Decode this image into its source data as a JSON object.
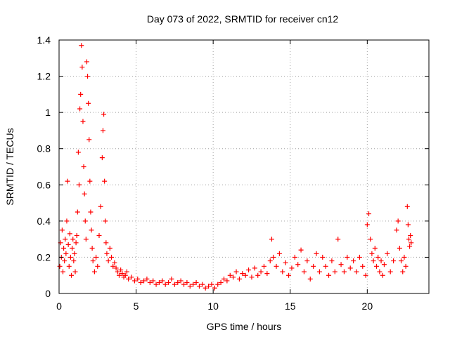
{
  "chart_data": {
    "type": "scatter",
    "title": "Day 073 of 2022, SRMTID for receiver cn12",
    "xlabel": "GPS time / hours",
    "ylabel": "SRMTID / TECUs",
    "xlim": [
      0,
      24
    ],
    "ylim": [
      0,
      1.4
    ],
    "xticks": [
      0,
      5,
      10,
      15,
      20
    ],
    "yticks": [
      0,
      0.2,
      0.4,
      0.6,
      0.8,
      1,
      1.2,
      1.4
    ],
    "grid": true,
    "marker": "plus",
    "color": "#ff0000",
    "series": [
      {
        "name": "SRMTID",
        "points": [
          [
            0.05,
            0.15
          ],
          [
            0.1,
            0.28
          ],
          [
            0.15,
            0.2
          ],
          [
            0.2,
            0.35
          ],
          [
            0.25,
            0.12
          ],
          [
            0.3,
            0.25
          ],
          [
            0.35,
            0.18
          ],
          [
            0.4,
            0.3
          ],
          [
            0.45,
            0.22
          ],
          [
            0.5,
            0.4
          ],
          [
            0.55,
            0.62
          ],
          [
            0.6,
            0.27
          ],
          [
            0.65,
            0.15
          ],
          [
            0.7,
            0.33
          ],
          [
            0.75,
            0.2
          ],
          [
            0.8,
            0.1
          ],
          [
            0.85,
            0.25
          ],
          [
            0.9,
            0.3
          ],
          [
            0.95,
            0.18
          ],
          [
            1.0,
            0.22
          ],
          [
            1.05,
            0.12
          ],
          [
            1.1,
            0.28
          ],
          [
            1.15,
            0.32
          ],
          [
            1.2,
            0.45
          ],
          [
            1.25,
            0.78
          ],
          [
            1.3,
            0.6
          ],
          [
            1.35,
            1.02
          ],
          [
            1.4,
            1.1
          ],
          [
            1.45,
            1.37
          ],
          [
            1.5,
            1.25
          ],
          [
            1.55,
            0.95
          ],
          [
            1.6,
            0.7
          ],
          [
            1.65,
            0.55
          ],
          [
            1.7,
            0.4
          ],
          [
            1.75,
            0.3
          ],
          [
            1.8,
            1.28
          ],
          [
            1.85,
            1.2
          ],
          [
            1.9,
            1.05
          ],
          [
            1.95,
            0.85
          ],
          [
            2.0,
            0.62
          ],
          [
            2.05,
            0.45
          ],
          [
            2.1,
            0.35
          ],
          [
            2.15,
            0.25
          ],
          [
            2.2,
            0.18
          ],
          [
            2.3,
            0.12
          ],
          [
            2.4,
            0.2
          ],
          [
            2.5,
            0.15
          ],
          [
            2.6,
            0.32
          ],
          [
            2.7,
            0.48
          ],
          [
            2.8,
            0.75
          ],
          [
            2.85,
            0.9
          ],
          [
            2.9,
            0.99
          ],
          [
            2.95,
            0.62
          ],
          [
            3.0,
            0.4
          ],
          [
            3.05,
            0.28
          ],
          [
            3.1,
            0.22
          ],
          [
            3.2,
            0.18
          ],
          [
            3.3,
            0.25
          ],
          [
            3.4,
            0.2
          ],
          [
            3.5,
            0.15
          ],
          [
            3.6,
            0.17
          ],
          [
            3.7,
            0.14
          ],
          [
            3.8,
            0.12
          ],
          [
            3.9,
            0.1
          ],
          [
            4.0,
            0.13
          ],
          [
            4.1,
            0.11
          ],
          [
            4.2,
            0.09
          ],
          [
            4.3,
            0.1
          ],
          [
            4.4,
            0.12
          ],
          [
            4.5,
            0.08
          ],
          [
            4.7,
            0.09
          ],
          [
            4.9,
            0.07
          ],
          [
            5.1,
            0.08
          ],
          [
            5.3,
            0.06
          ],
          [
            5.5,
            0.07
          ],
          [
            5.7,
            0.08
          ],
          [
            5.9,
            0.06
          ],
          [
            6.1,
            0.07
          ],
          [
            6.3,
            0.05
          ],
          [
            6.5,
            0.06
          ],
          [
            6.7,
            0.07
          ],
          [
            6.9,
            0.05
          ],
          [
            7.1,
            0.06
          ],
          [
            7.3,
            0.08
          ],
          [
            7.5,
            0.05
          ],
          [
            7.7,
            0.06
          ],
          [
            7.9,
            0.07
          ],
          [
            8.1,
            0.05
          ],
          [
            8.3,
            0.06
          ],
          [
            8.5,
            0.04
          ],
          [
            8.7,
            0.05
          ],
          [
            8.9,
            0.06
          ],
          [
            9.1,
            0.04
          ],
          [
            9.3,
            0.05
          ],
          [
            9.5,
            0.03
          ],
          [
            9.7,
            0.04
          ],
          [
            9.9,
            0.05
          ],
          [
            10.1,
            0.03
          ],
          [
            10.3,
            0.05
          ],
          [
            10.5,
            0.06
          ],
          [
            10.7,
            0.08
          ],
          [
            10.9,
            0.07
          ],
          [
            11.1,
            0.1
          ],
          [
            11.3,
            0.09
          ],
          [
            11.5,
            0.12
          ],
          [
            11.7,
            0.08
          ],
          [
            11.9,
            0.11
          ],
          [
            12.1,
            0.1
          ],
          [
            12.3,
            0.13
          ],
          [
            12.5,
            0.09
          ],
          [
            12.7,
            0.14
          ],
          [
            12.9,
            0.1
          ],
          [
            13.1,
            0.12
          ],
          [
            13.3,
            0.15
          ],
          [
            13.5,
            0.11
          ],
          [
            13.7,
            0.18
          ],
          [
            13.8,
            0.3
          ],
          [
            13.9,
            0.2
          ],
          [
            14.1,
            0.15
          ],
          [
            14.3,
            0.22
          ],
          [
            14.5,
            0.12
          ],
          [
            14.7,
            0.17
          ],
          [
            14.9,
            0.1
          ],
          [
            15.1,
            0.14
          ],
          [
            15.3,
            0.2
          ],
          [
            15.5,
            0.16
          ],
          [
            15.7,
            0.24
          ],
          [
            15.9,
            0.12
          ],
          [
            16.1,
            0.18
          ],
          [
            16.3,
            0.08
          ],
          [
            16.5,
            0.15
          ],
          [
            16.7,
            0.22
          ],
          [
            16.9,
            0.12
          ],
          [
            17.1,
            0.2
          ],
          [
            17.3,
            0.15
          ],
          [
            17.5,
            0.1
          ],
          [
            17.7,
            0.18
          ],
          [
            17.9,
            0.12
          ],
          [
            18.1,
            0.3
          ],
          [
            18.3,
            0.16
          ],
          [
            18.5,
            0.12
          ],
          [
            18.7,
            0.2
          ],
          [
            18.9,
            0.14
          ],
          [
            19.1,
            0.18
          ],
          [
            19.3,
            0.12
          ],
          [
            19.5,
            0.2
          ],
          [
            19.7,
            0.15
          ],
          [
            19.9,
            0.1
          ],
          [
            20.0,
            0.38
          ],
          [
            20.1,
            0.44
          ],
          [
            20.2,
            0.3
          ],
          [
            20.3,
            0.22
          ],
          [
            20.4,
            0.18
          ],
          [
            20.5,
            0.25
          ],
          [
            20.6,
            0.15
          ],
          [
            20.7,
            0.2
          ],
          [
            20.8,
            0.12
          ],
          [
            20.9,
            0.18
          ],
          [
            21.0,
            0.1
          ],
          [
            21.1,
            0.16
          ],
          [
            21.3,
            0.22
          ],
          [
            21.5,
            0.12
          ],
          [
            21.7,
            0.18
          ],
          [
            21.9,
            0.35
          ],
          [
            22.0,
            0.4
          ],
          [
            22.1,
            0.25
          ],
          [
            22.2,
            0.18
          ],
          [
            22.3,
            0.12
          ],
          [
            22.4,
            0.2
          ],
          [
            22.5,
            0.15
          ],
          [
            22.6,
            0.48
          ],
          [
            22.65,
            0.38
          ],
          [
            22.7,
            0.3
          ],
          [
            22.75,
            0.26
          ],
          [
            22.8,
            0.32
          ],
          [
            22.85,
            0.28
          ]
        ]
      }
    ]
  }
}
